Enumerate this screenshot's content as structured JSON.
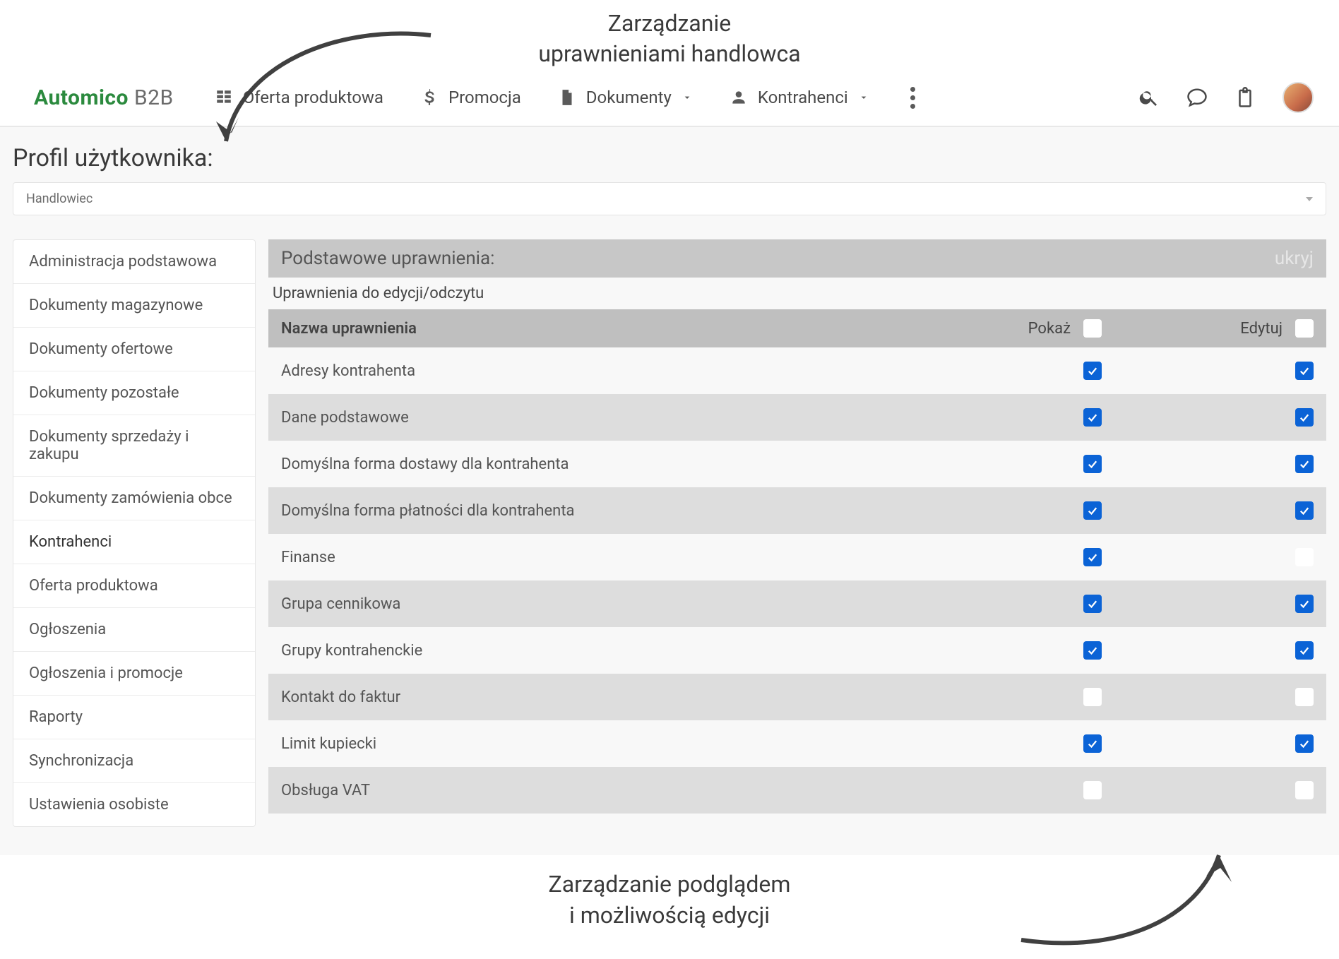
{
  "annotations": {
    "top_line1": "Zarządzanie",
    "top_line2": "uprawnieniami handlowca",
    "bottom_line1": "Zarządzanie podglądem",
    "bottom_line2": "i możliwością edycji"
  },
  "brand": {
    "strong": "Automico",
    "light": "B2B"
  },
  "nav": {
    "products": "Oferta produktowa",
    "promo": "Promocja",
    "docs": "Dokumenty",
    "contractors": "Kontrahenci"
  },
  "page": {
    "title": "Profil użytkownika:",
    "profile_selected": "Handlowiec"
  },
  "sidebar": {
    "items": [
      {
        "label": "Administracja podstawowa"
      },
      {
        "label": "Dokumenty magazynowe"
      },
      {
        "label": "Dokumenty ofertowe"
      },
      {
        "label": "Dokumenty pozostałe"
      },
      {
        "label": "Dokumenty sprzedaży i zakupu"
      },
      {
        "label": "Dokumenty zamówienia obce"
      },
      {
        "label": "Kontrahenci"
      },
      {
        "label": "Oferta produktowa"
      },
      {
        "label": "Ogłoszenia"
      },
      {
        "label": "Ogłoszenia i promocje"
      },
      {
        "label": "Raporty"
      },
      {
        "label": "Synchronizacja"
      },
      {
        "label": "Ustawienia osobiste"
      }
    ],
    "active_index": 6
  },
  "panel": {
    "title": "Podstawowe uprawnienia:",
    "hide": "ukryj",
    "subtitle": "Uprawnienia do edycji/odczytu",
    "col_name": "Nazwa uprawnienia",
    "col_show": "Pokaż",
    "col_edit": "Edytuj",
    "rows": [
      {
        "label": "Adresy kontrahenta",
        "show": true,
        "edit": true
      },
      {
        "label": "Dane podstawowe",
        "show": true,
        "edit": true
      },
      {
        "label": "Domyślna forma dostawy dla kontrahenta",
        "show": true,
        "edit": true
      },
      {
        "label": "Domyślna forma płatności dla kontrahenta",
        "show": true,
        "edit": true
      },
      {
        "label": "Finanse",
        "show": true,
        "edit": false
      },
      {
        "label": "Grupa cennikowa",
        "show": true,
        "edit": true
      },
      {
        "label": "Grupy kontrahenckie",
        "show": true,
        "edit": true
      },
      {
        "label": "Kontakt do faktur",
        "show": false,
        "edit": false
      },
      {
        "label": "Limit kupiecki",
        "show": true,
        "edit": true
      },
      {
        "label": "Obsługa VAT",
        "show": false,
        "edit": false
      }
    ]
  },
  "colors": {
    "brand_green": "#2b8a3e",
    "checkbox_on": "#0b63d6",
    "panel_head_bg": "#c7c7c7",
    "col_head_bg": "#bfbfbf",
    "row_alt_bg": "#dddddd"
  }
}
